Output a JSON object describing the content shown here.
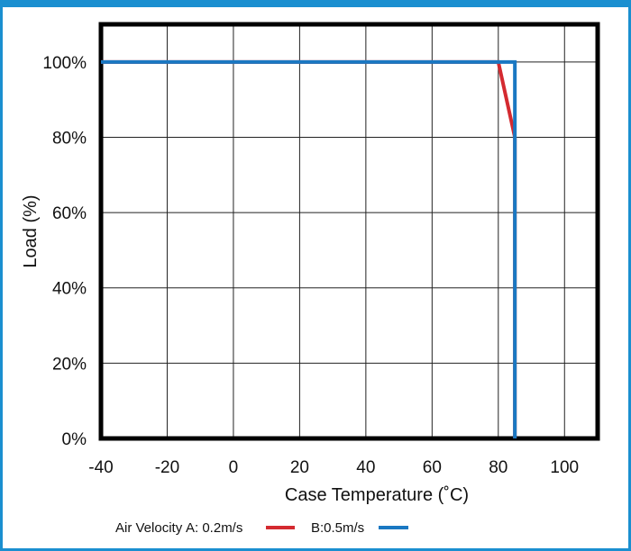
{
  "chart_data": {
    "type": "line",
    "xlabel": "Case Temperature (˚C)",
    "ylabel": "Load (%)",
    "xlim": [
      -40,
      110
    ],
    "ylim": [
      0,
      110
    ],
    "x_ticks": [
      -40,
      -20,
      0,
      20,
      40,
      60,
      80,
      100
    ],
    "x_tick_labels": [
      "-40",
      "-20",
      "0",
      "20",
      "40",
      "60",
      "80",
      "100"
    ],
    "y_ticks": [
      0,
      20,
      40,
      60,
      80,
      100
    ],
    "y_tick_labels": [
      "0%",
      "20%",
      "40%",
      "60%",
      "80%",
      "100%"
    ],
    "grid": true,
    "legend_position": "bottom",
    "legend_prefix": "Air Velocity",
    "series": [
      {
        "name": "A: 0.2m/s",
        "color": "#d42a30",
        "points": [
          [
            -40,
            100
          ],
          [
            80,
            100
          ],
          [
            85,
            80
          ],
          [
            85,
            0
          ]
        ]
      },
      {
        "name": "B:0.5m/s",
        "color": "#1a78c2",
        "points": [
          [
            -40,
            100
          ],
          [
            85,
            100
          ],
          [
            85,
            0
          ]
        ]
      }
    ]
  }
}
